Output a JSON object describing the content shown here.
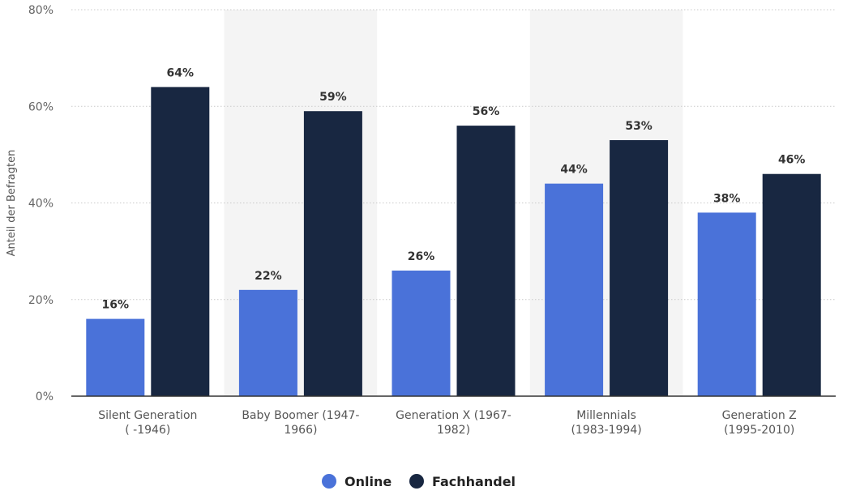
{
  "chart_data": {
    "type": "bar",
    "title": "",
    "xlabel": "",
    "ylabel": "Anteil der Befragten",
    "ylim": [
      0,
      80
    ],
    "yticks": [
      0,
      20,
      40,
      60,
      80
    ],
    "ytick_labels": [
      "0%",
      "20%",
      "40%",
      "60%",
      "80%"
    ],
    "grid": true,
    "legend_position": "bottom-center",
    "categories": [
      [
        "Silent Generation",
        "( -1946)"
      ],
      [
        "Baby Boomer (1947-",
        "1966)"
      ],
      [
        "Generation X (1967-",
        "1982)"
      ],
      [
        "Millennials",
        "(1983-1994)"
      ],
      [
        "Generation Z",
        "(1995-2010)"
      ]
    ],
    "series": [
      {
        "name": "Online",
        "color": "#4a72d9",
        "values": [
          16,
          22,
          26,
          44,
          38
        ],
        "labels": [
          "16%",
          "22%",
          "26%",
          "44%",
          "38%"
        ]
      },
      {
        "name": "Fachhandel",
        "color": "#182741",
        "values": [
          64,
          59,
          56,
          53,
          46
        ],
        "labels": [
          "64%",
          "59%",
          "56%",
          "53%",
          "46%"
        ]
      }
    ],
    "band_color": "#f4f4f4",
    "grid_color": "#c9c9c9",
    "axis_color": "#333333"
  }
}
